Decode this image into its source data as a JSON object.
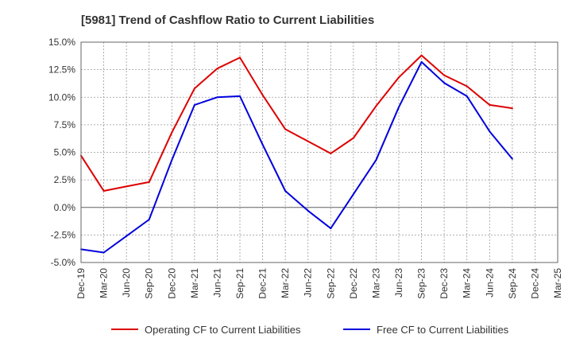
{
  "chart_data": {
    "type": "line",
    "title": "[5981]  Trend of Cashflow Ratio to Current Liabilities",
    "categories": [
      "Dec-19",
      "Mar-20",
      "Jun-20",
      "Sep-20",
      "Dec-20",
      "Mar-21",
      "Jun-21",
      "Sep-21",
      "Dec-21",
      "Mar-22",
      "Jun-22",
      "Sep-22",
      "Dec-22",
      "Mar-23",
      "Jun-23",
      "Sep-23",
      "Dec-23",
      "Mar-24",
      "Jun-24",
      "Sep-24",
      "Dec-24",
      "Mar-25"
    ],
    "y_ticks": [
      "15.0%",
      "12.5%",
      "10.0%",
      "7.5%",
      "5.0%",
      "2.5%",
      "0.0%",
      "-2.5%",
      "-5.0%"
    ],
    "ylim": [
      -5,
      15
    ],
    "grid": true,
    "legend_position": "bottom",
    "series": [
      {
        "name": "Operating CF to Current Liabilities",
        "color": "#dd0000",
        "values": [
          4.7,
          1.5,
          1.9,
          2.3,
          6.8,
          10.8,
          12.6,
          13.6,
          10.2,
          7.1,
          6.0,
          4.9,
          6.3,
          9.2,
          11.8,
          13.8,
          12.0,
          11.0,
          9.3,
          9.0,
          null,
          null
        ]
      },
      {
        "name": "Free CF to Current Liabilities",
        "color": "#0000dd",
        "values": [
          -3.8,
          -4.1,
          -2.6,
          -1.1,
          4.3,
          9.3,
          10.0,
          10.1,
          5.7,
          1.5,
          -0.3,
          -1.9,
          1.2,
          4.3,
          9.1,
          13.2,
          11.3,
          10.1,
          6.9,
          4.4,
          null,
          null
        ]
      }
    ]
  }
}
